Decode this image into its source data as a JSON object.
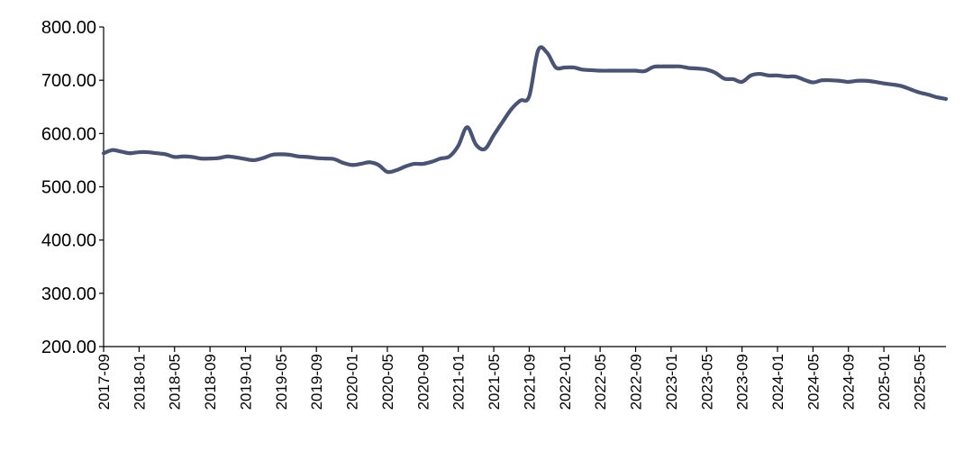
{
  "chart_data": {
    "type": "line",
    "title": "",
    "xlabel": "",
    "ylabel": "",
    "ylim": [
      200,
      800
    ],
    "y_ticks": [
      200,
      300,
      400,
      500,
      600,
      700,
      800
    ],
    "y_tick_labels": [
      "200.00",
      "300.00",
      "400.00",
      "500.00",
      "600.00",
      "700.00",
      "800.00"
    ],
    "x_tick_labels": [
      "2017-09",
      "2018-01",
      "2018-05",
      "2018-09",
      "2019-01",
      "2019-05",
      "2019-09",
      "2020-01",
      "2020-05",
      "2020-09",
      "2021-01",
      "2021-05",
      "2021-09",
      "2022-01",
      "2022-05",
      "2022-09",
      "2023-01",
      "2023-05",
      "2023-09",
      "2024-01",
      "2024-05",
      "2024-09",
      "2025-01",
      "2025-05"
    ],
    "xlim": [
      "2017-09",
      "2025-08"
    ],
    "grid": false,
    "legend": "none",
    "series": [
      {
        "color": "#4a5372",
        "x": [
          "2017-09",
          "2017-10",
          "2017-11",
          "2017-12",
          "2018-01",
          "2018-02",
          "2018-03",
          "2018-04",
          "2018-05",
          "2018-06",
          "2018-07",
          "2018-08",
          "2018-09",
          "2018-10",
          "2018-11",
          "2018-12",
          "2019-01",
          "2019-02",
          "2019-03",
          "2019-04",
          "2019-05",
          "2019-06",
          "2019-07",
          "2019-08",
          "2019-09",
          "2019-10",
          "2019-11",
          "2019-12",
          "2020-01",
          "2020-02",
          "2020-03",
          "2020-04",
          "2020-05",
          "2020-06",
          "2020-07",
          "2020-08",
          "2020-09",
          "2020-10",
          "2020-11",
          "2020-12",
          "2021-01",
          "2021-02",
          "2021-03",
          "2021-04",
          "2021-05",
          "2021-06",
          "2021-07",
          "2021-08",
          "2021-09",
          "2021-10",
          "2021-11",
          "2021-12",
          "2022-01",
          "2022-02",
          "2022-03",
          "2022-04",
          "2022-05",
          "2022-06",
          "2022-07",
          "2022-08",
          "2022-09",
          "2022-10",
          "2022-11",
          "2022-12",
          "2023-01",
          "2023-02",
          "2023-03",
          "2023-04",
          "2023-05",
          "2023-06",
          "2023-07",
          "2023-08",
          "2023-09",
          "2023-10",
          "2023-11",
          "2023-12",
          "2024-01",
          "2024-02",
          "2024-03",
          "2024-04",
          "2024-05",
          "2024-06",
          "2024-07",
          "2024-08",
          "2024-09",
          "2024-10",
          "2024-11",
          "2024-12",
          "2025-01",
          "2025-02",
          "2025-03",
          "2025-04",
          "2025-05",
          "2025-06",
          "2025-07",
          "2025-08"
        ],
        "values": [
          563,
          569,
          566,
          563,
          565,
          565,
          563,
          561,
          556,
          557,
          556,
          553,
          553,
          554,
          557,
          555,
          552,
          550,
          554,
          560,
          561,
          560,
          557,
          556,
          554,
          553,
          552,
          545,
          541,
          543,
          546,
          541,
          528,
          531,
          538,
          543,
          543,
          547,
          553,
          557,
          577,
          612,
          579,
          571,
          597,
          622,
          646,
          662,
          670,
          756,
          752,
          724,
          724,
          724,
          720,
          719,
          718,
          718,
          718,
          718,
          718,
          717,
          725,
          726,
          726,
          726,
          723,
          722,
          720,
          714,
          703,
          702,
          697,
          709,
          712,
          709,
          709,
          707,
          707,
          701,
          696,
          700,
          700,
          699,
          697,
          699,
          699,
          697,
          694,
          692,
          689,
          683,
          677,
          673,
          668,
          665
        ]
      }
    ]
  }
}
